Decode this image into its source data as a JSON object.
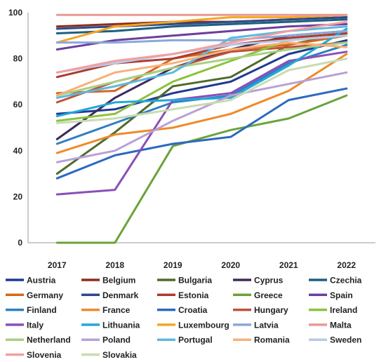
{
  "chart_data": {
    "type": "line",
    "title": "",
    "xlabel": "",
    "ylabel": "",
    "x": [
      "2017",
      "2018",
      "2019",
      "2020",
      "2021",
      "2022"
    ],
    "ylim": [
      0,
      100
    ],
    "yticks": [
      "0",
      "20",
      "40",
      "60",
      "80",
      "100"
    ],
    "grid": false,
    "legend_position": "bottom",
    "series": [
      {
        "name": "Austria",
        "color": "#1f3a93",
        "values": [
          56,
          58,
          65,
          70,
          82,
          88
        ]
      },
      {
        "name": "Belgium",
        "color": "#8b2d1a",
        "values": [
          94,
          95,
          96,
          96,
          97,
          98
        ]
      },
      {
        "name": "Bulgaria",
        "color": "#4f6b2a",
        "values": [
          30,
          48,
          68,
          72,
          86,
          91
        ]
      },
      {
        "name": "Cyprus",
        "color": "#3d2a5e",
        "values": [
          45,
          63,
          76,
          84,
          90,
          92
        ]
      },
      {
        "name": "Czechia",
        "color": "#1c5f80",
        "values": [
          91,
          92,
          94,
          95,
          96,
          97
        ]
      },
      {
        "name": "Germany",
        "color": "#d2691e",
        "values": [
          65,
          66,
          80,
          84,
          86,
          90
        ]
      },
      {
        "name": "Denmark",
        "color": "#2e4a8c",
        "values": [
          93,
          94,
          95,
          96,
          97,
          98
        ]
      },
      {
        "name": "Estonia",
        "color": "#b03a2e",
        "values": [
          72,
          78,
          80,
          86,
          89,
          91
        ]
      },
      {
        "name": "Greece",
        "color": "#6aa33a",
        "values": [
          0,
          0,
          42,
          49,
          54,
          64
        ]
      },
      {
        "name": "Spain",
        "color": "#6b3fa0",
        "values": [
          84,
          88,
          90,
          92,
          94,
          95
        ]
      },
      {
        "name": "Finland",
        "color": "#2f80c0",
        "values": [
          43,
          52,
          61,
          64,
          78,
          86
        ]
      },
      {
        "name": "France",
        "color": "#ef8a2a",
        "values": [
          39,
          47,
          50,
          56,
          66,
          82
        ]
      },
      {
        "name": "Croatia",
        "color": "#2a6ac0",
        "values": [
          28,
          38,
          43,
          46,
          62,
          67
        ]
      },
      {
        "name": "Hungary",
        "color": "#c0503a",
        "values": [
          61,
          70,
          76,
          83,
          85,
          87
        ]
      },
      {
        "name": "Ireland",
        "color": "#8cc23f",
        "values": [
          53,
          56,
          70,
          79,
          88,
          90
        ]
      },
      {
        "name": "Italy",
        "color": "#8a4fb8",
        "values": [
          21,
          23,
          62,
          65,
          79,
          83
        ]
      },
      {
        "name": "Lithuania",
        "color": "#22a8d8",
        "values": [
          55,
          61,
          62,
          63,
          77,
          93
        ]
      },
      {
        "name": "Luxembourg",
        "color": "#f5a623",
        "values": [
          87,
          94,
          96,
          98,
          98,
          99
        ]
      },
      {
        "name": "Latvia",
        "color": "#8aa8d8",
        "values": [
          87,
          87,
          88,
          88,
          90,
          92
        ]
      },
      {
        "name": "Malta",
        "color": "#e89a94",
        "values": [
          99,
          99,
          99,
          99,
          99,
          99
        ]
      },
      {
        "name": "Netherland",
        "color": "#a8d080",
        "values": [
          64,
          70,
          76,
          80,
          84,
          87
        ]
      },
      {
        "name": "Poland",
        "color": "#b8a0d8",
        "values": [
          35,
          40,
          53,
          64,
          69,
          74
        ]
      },
      {
        "name": "Portugal",
        "color": "#5cb8e0",
        "values": [
          63,
          68,
          74,
          89,
          92,
          94
        ]
      },
      {
        "name": "Romania",
        "color": "#f7b07a",
        "values": [
          64,
          74,
          78,
          84,
          87,
          85
        ]
      },
      {
        "name": "Sweden",
        "color": "#b8c8e8",
        "values": [
          74,
          78,
          82,
          86,
          88,
          90
        ]
      },
      {
        "name": "Slovenia",
        "color": "#f0a0a0",
        "values": [
          74,
          79,
          82,
          87,
          92,
          96
        ]
      },
      {
        "name": "Slovakia",
        "color": "#c8dcb0",
        "values": [
          52,
          54,
          58,
          62,
          75,
          80
        ]
      }
    ]
  }
}
